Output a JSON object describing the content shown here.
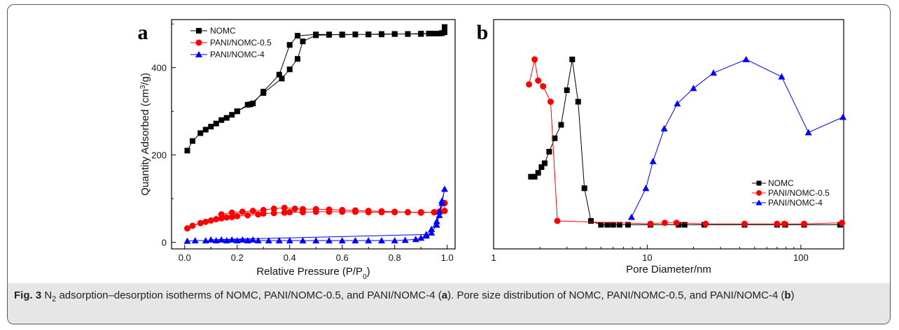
{
  "chart_data": [
    {
      "type": "scatter",
      "panel_label": "a",
      "xlabel_main": "Relative Pressure (P/P",
      "xlabel_sub": "0",
      "xlabel_tail": ")",
      "ylabel_main": "Quantity Adsorbed (cm",
      "ylabel_sup": "3",
      "ylabel_tail": "/g)",
      "xlim": [
        -0.05,
        1.03
      ],
      "ylim": [
        -15,
        510
      ],
      "xticks": [
        0.0,
        0.2,
        0.4,
        0.6,
        0.8,
        1.0
      ],
      "xtick_labels": [
        "0.0",
        "0.2",
        "0.4",
        "0.6",
        "0.8",
        "1.0"
      ],
      "yticks": [
        0,
        200,
        400
      ],
      "ytick_labels": [
        "0",
        "200",
        "400"
      ],
      "legend_position": "top-left",
      "series": [
        {
          "name": "NOMC",
          "color": "#000000",
          "marker": "square",
          "x": [
            0.01,
            0.03,
            0.06,
            0.08,
            0.1,
            0.12,
            0.14,
            0.16,
            0.18,
            0.2,
            0.24,
            0.26,
            0.3,
            0.36,
            0.4,
            0.43,
            0.5,
            0.55,
            0.6,
            0.65,
            0.7,
            0.75,
            0.8,
            0.85,
            0.9,
            0.93,
            0.95,
            0.97,
            0.98,
            0.99,
            0.99,
            0.98,
            0.96,
            0.93,
            0.9,
            0.85,
            0.8,
            0.75,
            0.7,
            0.65,
            0.6,
            0.55,
            0.5,
            0.45,
            0.43,
            0.4,
            0.37,
            0.3,
            0.25,
            0.2
          ],
          "y": [
            210,
            232,
            250,
            258,
            265,
            272,
            280,
            285,
            292,
            300,
            315,
            318,
            345,
            384,
            452,
            473,
            476,
            476,
            475,
            476,
            476,
            476,
            477,
            477,
            477,
            478,
            478,
            478,
            479,
            493,
            481,
            479,
            478,
            478,
            478,
            477,
            477,
            477,
            476,
            476,
            476,
            475,
            474,
            460,
            420,
            396,
            375,
            342,
            316,
            300
          ]
        },
        {
          "name": "PANI/NOMC-0.5",
          "color": "#ff0000",
          "marker": "circle",
          "x": [
            0.01,
            0.03,
            0.06,
            0.08,
            0.1,
            0.12,
            0.14,
            0.16,
            0.18,
            0.2,
            0.24,
            0.28,
            0.3,
            0.34,
            0.38,
            0.4,
            0.45,
            0.5,
            0.55,
            0.6,
            0.65,
            0.7,
            0.75,
            0.8,
            0.85,
            0.9,
            0.95,
            0.97,
            0.99,
            0.99,
            0.97,
            0.95,
            0.9,
            0.85,
            0.8,
            0.75,
            0.7,
            0.65,
            0.6,
            0.55,
            0.5,
            0.45,
            0.42,
            0.38,
            0.34,
            0.3,
            0.26,
            0.22,
            0.18,
            0.14
          ],
          "y": [
            32,
            38,
            44,
            47,
            50,
            53,
            55,
            57,
            58,
            60,
            62,
            64,
            66,
            67,
            68,
            69,
            69,
            70,
            70,
            70,
            70,
            69,
            69,
            69,
            69,
            68,
            69,
            70,
            72,
            90,
            70,
            69,
            69,
            69,
            70,
            71,
            72,
            73,
            74,
            75,
            76,
            76,
            77,
            79,
            77,
            74,
            72,
            70,
            68,
            64
          ]
        },
        {
          "name": "PANI/NOMC-4",
          "color": "#0000ff",
          "marker": "triangle",
          "x": [
            0.01,
            0.04,
            0.08,
            0.12,
            0.16,
            0.2,
            0.24,
            0.28,
            0.32,
            0.36,
            0.4,
            0.45,
            0.5,
            0.55,
            0.6,
            0.65,
            0.7,
            0.75,
            0.8,
            0.84,
            0.88,
            0.9,
            0.92,
            0.94,
            0.96,
            0.97,
            0.98,
            0.99,
            0.98,
            0.97,
            0.96,
            0.94,
            0.92,
            0.1,
            0.14,
            0.18,
            0.22,
            0.26
          ],
          "y": [
            3,
            4,
            4,
            4,
            4,
            4,
            4,
            4,
            4,
            4,
            4,
            4,
            4,
            4,
            4,
            4,
            4,
            4,
            4,
            5,
            7,
            10,
            15,
            22,
            40,
            62,
            90,
            122,
            95,
            70,
            48,
            30,
            18,
            6,
            6,
            6,
            6,
            6
          ]
        }
      ]
    },
    {
      "type": "line",
      "panel_label": "b",
      "xlabel": "Pore Diameter/nm",
      "xscale": "log",
      "xlim": [
        1,
        190
      ],
      "xticks": [
        1,
        10,
        100
      ],
      "xtick_labels": [
        "1",
        "10",
        "100"
      ],
      "yticks_shown": false,
      "ylim": [
        0,
        1
      ],
      "legend_position": "bottom-right",
      "series": [
        {
          "name": "NOMC",
          "color": "#000000",
          "marker": "square",
          "x": [
            1.75,
            1.85,
            1.95,
            2.05,
            2.15,
            2.3,
            2.5,
            2.75,
            3.0,
            3.25,
            3.55,
            3.9,
            4.3,
            5.0,
            5.5,
            6.0,
            6.6,
            7.5,
            10.5,
            16.0,
            17.5,
            23.5,
            43.0,
            70.0,
            79.0,
            105.0,
            180.0
          ],
          "y": [
            0.31,
            0.31,
            0.33,
            0.36,
            0.38,
            0.44,
            0.51,
            0.58,
            0.76,
            0.92,
            0.7,
            0.25,
            0.08,
            0.06,
            0.06,
            0.06,
            0.06,
            0.06,
            0.06,
            0.06,
            0.06,
            0.06,
            0.06,
            0.06,
            0.06,
            0.06,
            0.06
          ]
        },
        {
          "name": "PANI/NOMC-0.5",
          "color": "#ff0000",
          "marker": "circle",
          "x": [
            1.7,
            1.85,
            1.95,
            2.1,
            2.35,
            2.6,
            10.5,
            13.0,
            15.5,
            24.0,
            43.0,
            70.0,
            78.0,
            105.0,
            185.0
          ],
          "y": [
            0.79,
            0.92,
            0.81,
            0.78,
            0.7,
            0.08,
            0.065,
            0.07,
            0.07,
            0.065,
            0.065,
            0.065,
            0.065,
            0.065,
            0.07
          ]
        },
        {
          "name": "PANI/NOMC-4",
          "color": "#0000ff",
          "marker": "triangle",
          "x": [
            7.9,
            9.8,
            10.9,
            12.9,
            15.7,
            20.0,
            27.0,
            44.0,
            75.0,
            112.0,
            188.0
          ],
          "y": [
            0.1,
            0.25,
            0.39,
            0.56,
            0.69,
            0.77,
            0.85,
            0.92,
            0.83,
            0.54,
            0.62
          ]
        }
      ]
    }
  ],
  "caption": {
    "fig_label": "Fig. 3",
    "part1": " N",
    "sub2": "2",
    "part2": " adsorption–desorption isotherms of NOMC, PANI/NOMC-0.5, and PANI/NOMC-4 (",
    "ref_a": "a",
    "part3": "). Pore size distribution of NOMC, PANI/NOMC-0.5, and PANI/NOMC-4 (",
    "ref_b": "b",
    "part4": ")"
  }
}
